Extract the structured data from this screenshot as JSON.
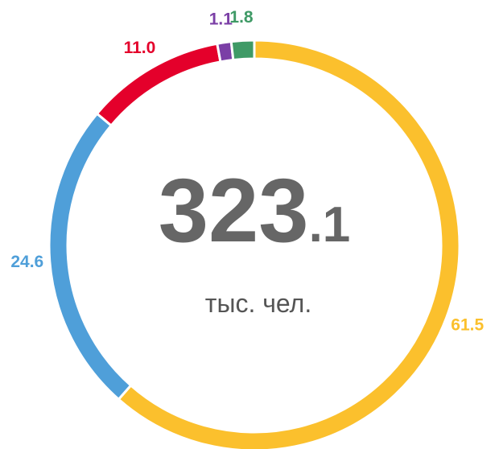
{
  "chart_data": {
    "type": "donut",
    "values": [
      61.5,
      24.6,
      11.0,
      1.1,
      1.8
    ],
    "value_labels": [
      "61.5",
      "24.6",
      "11.0",
      "1.1",
      "1.8"
    ],
    "colors": [
      "#fbc02d",
      "#4f9fd9",
      "#e4002b",
      "#7b3fa6",
      "#3f9a66"
    ],
    "center_main": "323",
    "center_decimal": ".1",
    "center_unit": "тыс. чел."
  }
}
